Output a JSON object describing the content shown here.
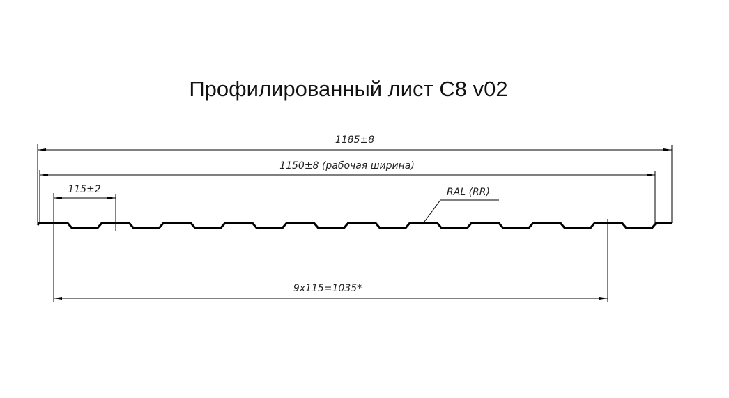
{
  "title": "Профилированный лист С8 v02",
  "dimensions": {
    "total_width": "1185±8",
    "working_width": "1150±8 (рабочая ширина)",
    "pitch": "115±2",
    "span": "9x115=1035*",
    "coating": "RAL (RR)"
  },
  "profile": {
    "rib_count": 10
  }
}
